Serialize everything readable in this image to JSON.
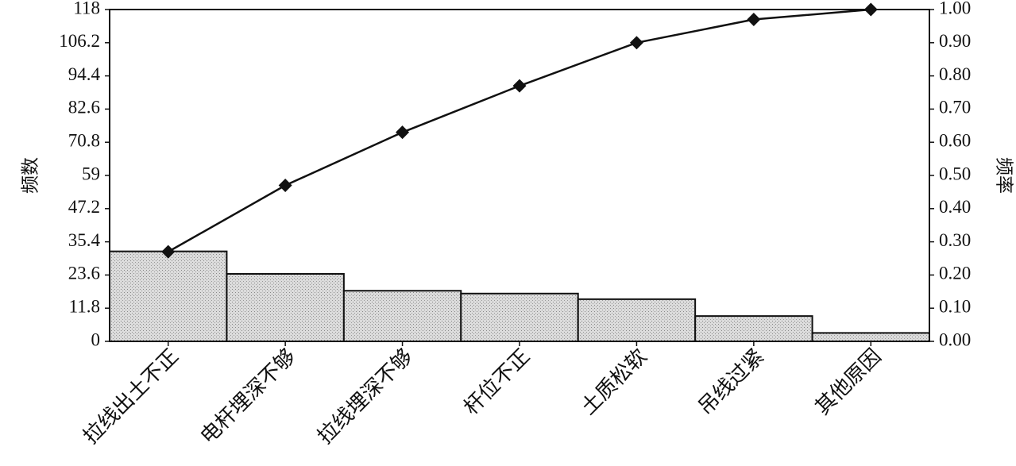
{
  "chart_data": {
    "type": "pareto",
    "y_label": "频数",
    "y2_label": "频率",
    "categories": [
      "拉线出土不正",
      "电杆埋深不够",
      "拉线埋深不够",
      "杆位不正",
      "土质松软",
      "吊线过紧",
      "其他原因"
    ],
    "series": [
      {
        "type": "bar",
        "color": "#d4d4d4",
        "values": [
          32,
          24,
          18,
          17,
          15,
          9,
          3
        ]
      },
      {
        "type": "line",
        "axis": "y2",
        "color": "#111111",
        "values": [
          0.27,
          0.47,
          0.63,
          0.77,
          0.9,
          0.97,
          1.0
        ]
      }
    ],
    "ylim": [
      0,
      118
    ],
    "yticks": [
      0,
      11.8,
      23.6,
      35.4,
      47.2,
      59,
      70.8,
      82.6,
      94.4,
      106.2,
      118
    ],
    "y2lim": [
      0,
      1
    ],
    "y2ticks": [
      {
        "value": 0,
        "label": "0.00"
      },
      {
        "value": 0.1,
        "label": "0.10"
      },
      {
        "value": 0.2,
        "label": "0.20"
      },
      {
        "value": 0.3,
        "label": "0.30"
      },
      {
        "value": 0.4,
        "label": "0.40"
      },
      {
        "value": 0.5,
        "label": "0.50"
      },
      {
        "value": 0.6,
        "label": "0.60"
      },
      {
        "value": 0.7,
        "label": "0.70"
      },
      {
        "value": 0.8,
        "label": "0.80"
      },
      {
        "value": 0.9,
        "label": "0.90"
      },
      {
        "value": 1,
        "label": "1.00"
      }
    ]
  }
}
